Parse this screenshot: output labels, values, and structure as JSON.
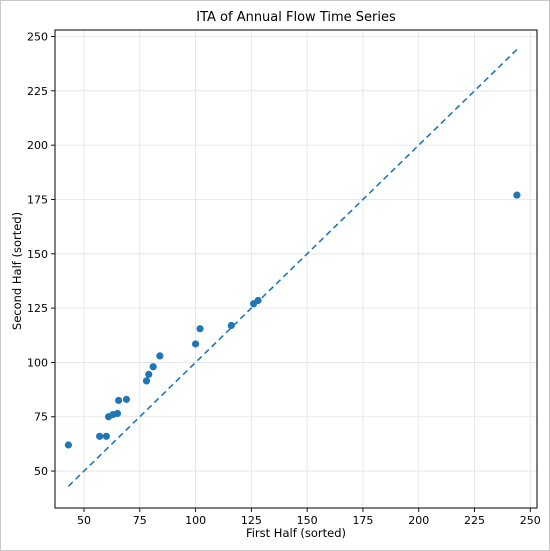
{
  "chart_data": {
    "type": "scatter",
    "title": "ITA of Annual Flow Time Series",
    "xlabel": "First Half (sorted)",
    "ylabel": "Second Half (sorted)",
    "xlim": [
      37,
      253
    ],
    "ylim": [
      33,
      253
    ],
    "xticks": [
      50,
      75,
      100,
      125,
      150,
      175,
      200,
      225,
      250
    ],
    "yticks": [
      50,
      75,
      100,
      125,
      150,
      175,
      200,
      225,
      250
    ],
    "grid": true,
    "colors": {
      "points": "#1f77b4",
      "reference_line": "#1f77b4"
    },
    "series": [
      {
        "kind": "points",
        "x": [
          43,
          57,
          60,
          61,
          63,
          65,
          65.5,
          69,
          78,
          79,
          81,
          84,
          100,
          102,
          116,
          126,
          128,
          244
        ],
        "y": [
          62,
          66,
          66,
          75,
          76,
          76.5,
          82.5,
          83,
          91.5,
          94.5,
          98,
          103,
          108.5,
          115.5,
          117,
          127,
          128.5,
          177
        ]
      },
      {
        "kind": "reference-line",
        "style": "dashed",
        "x": [
          43,
          244
        ],
        "y": [
          43,
          244
        ]
      }
    ]
  }
}
